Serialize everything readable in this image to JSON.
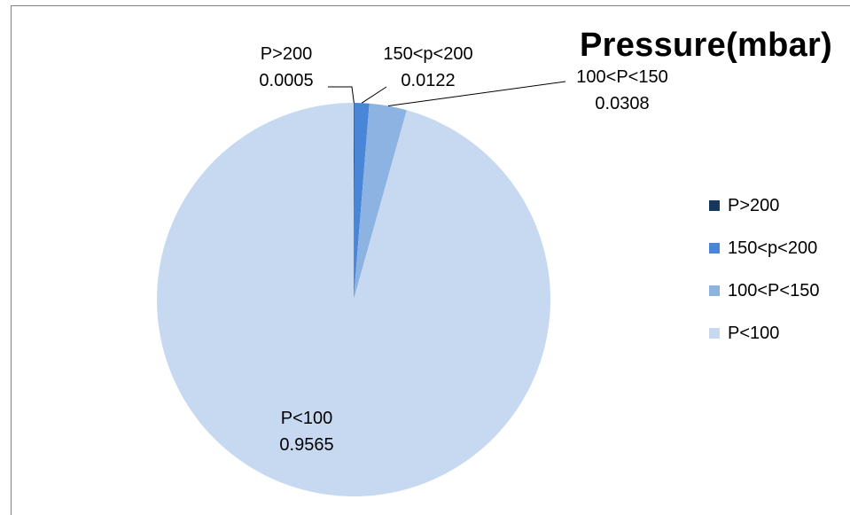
{
  "chart_data": {
    "type": "pie",
    "title": "Pressure(mbar)",
    "slices": [
      {
        "label": "P>200",
        "value": 0.0005,
        "value_text": "0.0005",
        "color": "#17375e"
      },
      {
        "label": "150<p<200",
        "value": 0.0122,
        "value_text": "0.0122",
        "color": "#4a86d8"
      },
      {
        "label": "100<P<150",
        "value": 0.0308,
        "value_text": "0.0308",
        "color": "#8db3e2"
      },
      {
        "label": "P<100",
        "value": 0.9565,
        "value_text": "0.9565",
        "color": "#c6d9f1"
      }
    ],
    "legend": {
      "position": "right",
      "entries": [
        "P>200",
        "150<p<200",
        "100<P<150",
        "P<100"
      ]
    },
    "data_labels": "category name and value"
  }
}
